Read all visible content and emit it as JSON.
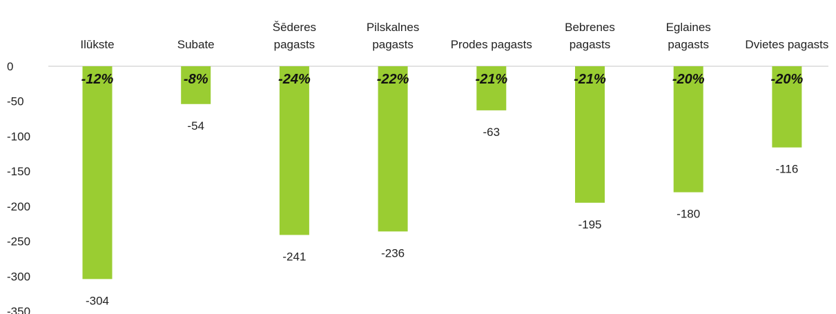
{
  "chart_data": {
    "type": "bar",
    "categories": [
      [
        "Ilūkste"
      ],
      [
        "Subate"
      ],
      [
        "Šēderes",
        "pagasts"
      ],
      [
        "Pilskalnes",
        "pagasts"
      ],
      [
        "Prodes pagasts"
      ],
      [
        "Bebrenes",
        "pagasts"
      ],
      [
        "Eglaines",
        "pagasts"
      ],
      [
        "Dvietes pagasts"
      ]
    ],
    "values": [
      -304,
      -54,
      -241,
      -236,
      -63,
      -195,
      -180,
      -116
    ],
    "value_labels": [
      "-304",
      "-54",
      "-241",
      "-236",
      "-63",
      "-195",
      "-180",
      "-116"
    ],
    "percent_labels": [
      "-12%",
      "-8%",
      "-24%",
      "-22%",
      "-21%",
      "-21%",
      "-20%",
      "-20%"
    ],
    "y_ticks": [
      0,
      -50,
      -100,
      -150,
      -200,
      -250,
      -300,
      -350
    ],
    "ylim": [
      -350,
      0
    ],
    "grid": false,
    "legend": "none",
    "colors": {
      "bar": "#9acd32",
      "axis": "#d9d9d9",
      "text": "#222222"
    }
  }
}
